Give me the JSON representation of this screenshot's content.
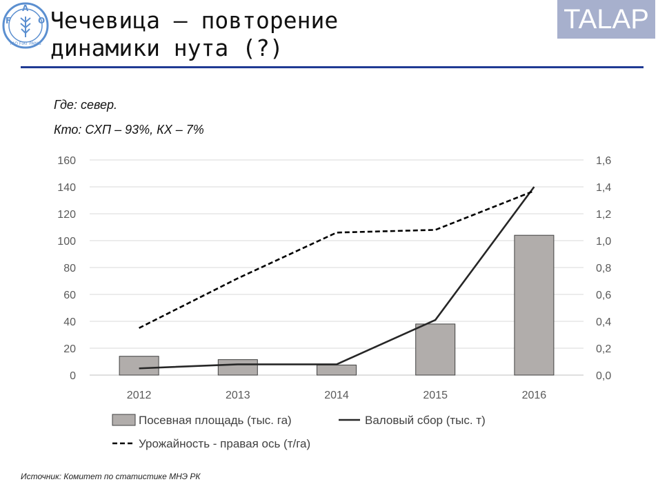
{
  "header": {
    "title": "Чечевица – повторение\nдинамики нута (?)",
    "brand": "TALAP",
    "logo_icon": "fao-logo-icon",
    "logo_text": "FAO FIAT PANIS",
    "logo_color": "#5b8fd0",
    "brand_color": "#a7b0cd",
    "rule_color": "#1f3a93"
  },
  "notes": {
    "where": "Где: север.",
    "who": "Кто: СХП – 93%, КХ – 7%"
  },
  "chart_data": {
    "type": "bar",
    "categories": [
      "2012",
      "2013",
      "2014",
      "2015",
      "2016"
    ],
    "left_axis": {
      "min": 0,
      "max": 160,
      "ticks": [
        "0",
        "20",
        "40",
        "60",
        "80",
        "100",
        "120",
        "140",
        "160"
      ]
    },
    "right_axis": {
      "min": 0,
      "max": 1.6,
      "ticks": [
        "0,0",
        "0,2",
        "0,4",
        "0,6",
        "0,8",
        "1,0",
        "1,2",
        "1,4",
        "1,6"
      ]
    },
    "grid": true,
    "legend_position": "bottom",
    "series": [
      {
        "name": "Посевная площадь (тыс. га)",
        "type": "bar",
        "axis": "left",
        "values": [
          14,
          11.5,
          7.5,
          38,
          104
        ],
        "color": "#b1adab"
      },
      {
        "name": "Валовый сбор (тыс. т)",
        "type": "line",
        "axis": "left",
        "style": "solid",
        "values": [
          5,
          8,
          8,
          41,
          140
        ],
        "color": "#262626"
      },
      {
        "name": "Урожайность - правая ось (т/га)",
        "type": "line",
        "axis": "right",
        "style": "dashed",
        "values": [
          0.35,
          0.72,
          1.06,
          1.08,
          1.37
        ],
        "color": "#000000"
      }
    ]
  },
  "source": "Источник: Комитет по статистике МНЭ РК"
}
